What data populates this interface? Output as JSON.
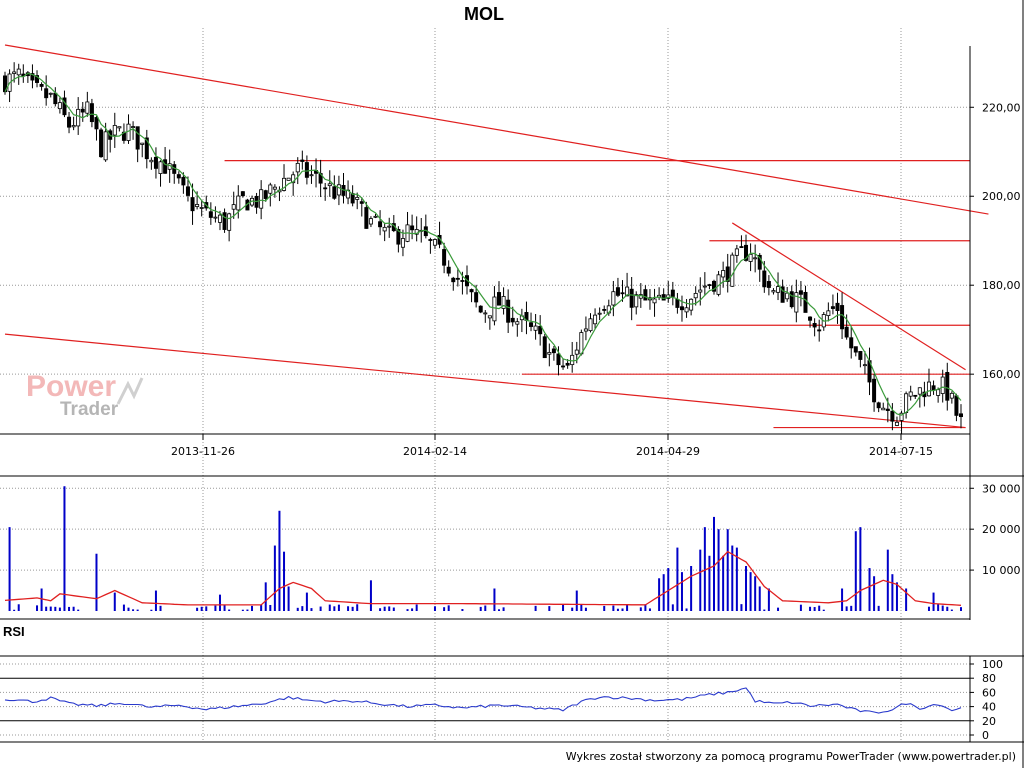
{
  "chart_data": [
    {
      "type": "candlestick",
      "title": "MOL",
      "ylim": [
        147,
        234
      ],
      "y_ticks": [
        "220,00",
        "200,00",
        "180,00",
        "160,00"
      ],
      "y_tick_values": [
        220,
        200,
        180,
        160
      ],
      "x_tick_labels": [
        "2013-11-26",
        "2014-02-14",
        "2014-04-29",
        "2014-07-15"
      ],
      "x_tick_positions": [
        42,
        94,
        145,
        196
      ],
      "n_sessions": 210,
      "anchors": [
        [
          0,
          226
        ],
        [
          3,
          227
        ],
        [
          6,
          224
        ],
        [
          10,
          222
        ],
        [
          14,
          216
        ],
        [
          18,
          219
        ],
        [
          21,
          211
        ],
        [
          24,
          214
        ],
        [
          27,
          215
        ],
        [
          31,
          210
        ],
        [
          35,
          207
        ],
        [
          40,
          199
        ],
        [
          44,
          196
        ],
        [
          48,
          194
        ],
        [
          52,
          199
        ],
        [
          56,
          199
        ],
        [
          60,
          203
        ],
        [
          64,
          206
        ],
        [
          68,
          204
        ],
        [
          72,
          201
        ],
        [
          76,
          199
        ],
        [
          80,
          194
        ],
        [
          84,
          191
        ],
        [
          88,
          192
        ],
        [
          92,
          190
        ],
        [
          96,
          186
        ],
        [
          100,
          180
        ],
        [
          104,
          174
        ],
        [
          108,
          176
        ],
        [
          112,
          172
        ],
        [
          116,
          169
        ],
        [
          120,
          163
        ],
        [
          123,
          161
        ],
        [
          126,
          169
        ],
        [
          129,
          175
        ],
        [
          133,
          178
        ],
        [
          137,
          177
        ],
        [
          141,
          176
        ],
        [
          145,
          176
        ],
        [
          149,
          177
        ],
        [
          153,
          180
        ],
        [
          157,
          182
        ],
        [
          161,
          187
        ],
        [
          163,
          188
        ],
        [
          165,
          183
        ],
        [
          168,
          178
        ],
        [
          171,
          178
        ],
        [
          174,
          176
        ],
        [
          176,
          174
        ],
        [
          178,
          171
        ],
        [
          180,
          174
        ],
        [
          182,
          175
        ],
        [
          184,
          168
        ],
        [
          186,
          164
        ],
        [
          188,
          160
        ],
        [
          190,
          156
        ],
        [
          192,
          153
        ],
        [
          195,
          151
        ],
        [
          198,
          155
        ],
        [
          201,
          157
        ],
        [
          204,
          158
        ],
        [
          206,
          156
        ],
        [
          208,
          151
        ],
        [
          209,
          149
        ]
      ],
      "moving_average": true,
      "trendlines": [
        {
          "from": [
            0,
            234
          ],
          "to": [
            215,
            196
          ]
        },
        {
          "from": [
            0,
            169
          ],
          "to": [
            210,
            148
          ]
        },
        {
          "from": [
            159,
            194
          ],
          "to": [
            210,
            161
          ]
        },
        {
          "from": [
            48,
            208
          ],
          "to": [
            211,
            208
          ]
        },
        {
          "from": [
            154,
            190
          ],
          "to": [
            211,
            190
          ]
        },
        {
          "from": [
            138,
            171
          ],
          "to": [
            211,
            171
          ]
        },
        {
          "from": [
            113,
            160
          ],
          "to": [
            211,
            160
          ]
        },
        {
          "from": [
            168,
            148
          ],
          "to": [
            210,
            148
          ]
        }
      ]
    },
    {
      "type": "bar",
      "name": "volume",
      "ylim": [
        0,
        33000
      ],
      "y_ticks": [
        "30 000",
        "20 000",
        "10 000"
      ],
      "y_tick_values": [
        30000,
        20000,
        10000
      ],
      "spikes": [
        [
          1,
          20500
        ],
        [
          8,
          5500
        ],
        [
          13,
          30500
        ],
        [
          20,
          14000
        ],
        [
          24,
          4500
        ],
        [
          33,
          5000
        ],
        [
          47,
          4000
        ],
        [
          57,
          7000
        ],
        [
          59,
          16000
        ],
        [
          60,
          24500
        ],
        [
          61,
          14500
        ],
        [
          62,
          6000
        ],
        [
          66,
          4500
        ],
        [
          80,
          7500
        ],
        [
          107,
          5500
        ],
        [
          125,
          5000
        ],
        [
          143,
          8000
        ],
        [
          144,
          9000
        ],
        [
          145,
          10500
        ],
        [
          147,
          15500
        ],
        [
          148,
          9500
        ],
        [
          150,
          11000
        ],
        [
          152,
          15000
        ],
        [
          153,
          20500
        ],
        [
          154,
          13500
        ],
        [
          155,
          23000
        ],
        [
          156,
          20000
        ],
        [
          157,
          13500
        ],
        [
          158,
          20000
        ],
        [
          159,
          16000
        ],
        [
          160,
          15500
        ],
        [
          162,
          11000
        ],
        [
          163,
          9500
        ],
        [
          164,
          8500
        ],
        [
          165,
          6000
        ],
        [
          167,
          5500
        ],
        [
          183,
          5500
        ],
        [
          186,
          19500
        ],
        [
          187,
          20500
        ],
        [
          189,
          10500
        ],
        [
          190,
          8500
        ],
        [
          193,
          15000
        ],
        [
          194,
          9000
        ],
        [
          195,
          7000
        ],
        [
          197,
          5500
        ],
        [
          203,
          4500
        ]
      ],
      "moving_average_anchors": [
        [
          0,
          2600
        ],
        [
          7,
          3200
        ],
        [
          10,
          2500
        ],
        [
          12,
          4200
        ],
        [
          20,
          3000
        ],
        [
          24,
          5000
        ],
        [
          30,
          2000
        ],
        [
          40,
          1500
        ],
        [
          56,
          1500
        ],
        [
          60,
          5500
        ],
        [
          63,
          7000
        ],
        [
          67,
          5500
        ],
        [
          70,
          2500
        ],
        [
          80,
          1800
        ],
        [
          100,
          1800
        ],
        [
          140,
          1500
        ],
        [
          145,
          5000
        ],
        [
          150,
          8500
        ],
        [
          155,
          11000
        ],
        [
          158,
          14500
        ],
        [
          162,
          12000
        ],
        [
          166,
          6000
        ],
        [
          170,
          2500
        ],
        [
          180,
          2000
        ],
        [
          184,
          2500
        ],
        [
          187,
          5000
        ],
        [
          192,
          7500
        ],
        [
          195,
          6500
        ],
        [
          199,
          2500
        ],
        [
          203,
          1800
        ],
        [
          209,
          1400
        ]
      ]
    },
    {
      "type": "line",
      "title": "RSI",
      "ylim": [
        0,
        100
      ],
      "y_ticks": [
        "100",
        "80",
        "60",
        "40",
        "20",
        "0"
      ],
      "y_tick_values": [
        100,
        80,
        60,
        40,
        20,
        0
      ],
      "reference_lines": [
        80,
        20
      ],
      "anchors": [
        [
          0,
          51
        ],
        [
          6,
          47
        ],
        [
          10,
          52
        ],
        [
          14,
          44
        ],
        [
          20,
          41
        ],
        [
          26,
          45
        ],
        [
          32,
          39
        ],
        [
          38,
          42
        ],
        [
          44,
          36
        ],
        [
          50,
          40
        ],
        [
          56,
          44
        ],
        [
          62,
          53
        ],
        [
          66,
          49
        ],
        [
          70,
          47
        ],
        [
          76,
          48
        ],
        [
          82,
          44
        ],
        [
          88,
          40
        ],
        [
          94,
          42
        ],
        [
          100,
          38
        ],
        [
          108,
          42
        ],
        [
          116,
          38
        ],
        [
          122,
          35
        ],
        [
          126,
          47
        ],
        [
          130,
          54
        ],
        [
          136,
          52
        ],
        [
          142,
          49
        ],
        [
          148,
          50
        ],
        [
          154,
          57
        ],
        [
          158,
          60
        ],
        [
          162,
          66
        ],
        [
          164,
          48
        ],
        [
          168,
          44
        ],
        [
          172,
          46
        ],
        [
          176,
          41
        ],
        [
          182,
          43
        ],
        [
          186,
          35
        ],
        [
          190,
          31
        ],
        [
          194,
          36
        ],
        [
          197,
          45
        ],
        [
          200,
          38
        ],
        [
          204,
          44
        ],
        [
          207,
          35
        ],
        [
          210,
          39
        ]
      ]
    }
  ],
  "watermark": {
    "line1": "Power",
    "line2": "Trader"
  },
  "footer": "Wykres został stworzony za pomocą programu PowerTrader (www.powertrader.pl)",
  "colors": {
    "candle": "#000000",
    "moving_average": "#3a9b3a",
    "trendline": "#e02020",
    "volume": "#0000c8",
    "volume_ma": "#e02020",
    "rsi": "#2a3acc",
    "grid": "#999999"
  }
}
